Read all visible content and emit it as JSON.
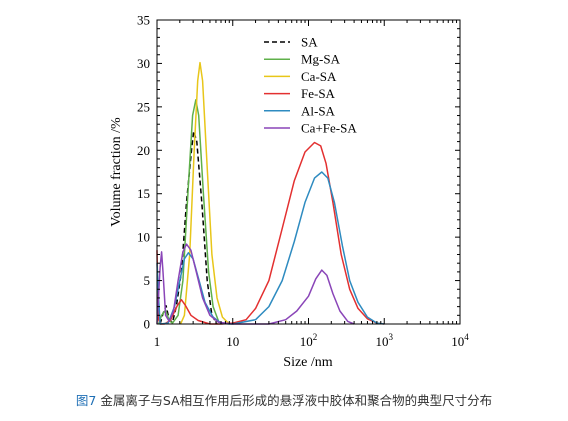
{
  "caption": {
    "figure_label": "图7",
    "text": "金属离子与SA相互作用后形成的悬浮液中胶体和聚合物的典型尺寸分布"
  },
  "chart_data": {
    "type": "line",
    "xlabel": "Size /nm",
    "ylabel": "Volume fraction /%",
    "xscale": "log",
    "xlim": [
      1,
      10000
    ],
    "ylim": [
      0,
      35
    ],
    "x_ticks": [
      {
        "value": 1,
        "label": "1"
      },
      {
        "value": 10,
        "label": "10"
      },
      {
        "value": 100,
        "label": "10",
        "sup": "2"
      },
      {
        "value": 1000,
        "label": "10",
        "sup": "3"
      },
      {
        "value": 10000,
        "label": "10",
        "sup": "4"
      }
    ],
    "y_ticks": [
      0,
      5,
      10,
      15,
      20,
      25,
      30,
      35
    ],
    "legend_position": "top-right inside",
    "series": [
      {
        "name": "SA",
        "color": "#000000",
        "dash": "dashed",
        "points": [
          [
            1.1,
            0
          ],
          [
            1.2,
            1.2
          ],
          [
            1.32,
            2.1
          ],
          [
            1.45,
            0.5
          ],
          [
            1.6,
            0.2
          ],
          [
            1.8,
            2
          ],
          [
            2.1,
            6
          ],
          [
            2.45,
            14
          ],
          [
            2.85,
            20
          ],
          [
            3.05,
            22.2
          ],
          [
            3.35,
            21
          ],
          [
            3.9,
            14
          ],
          [
            4.6,
            5
          ],
          [
            5.3,
            1
          ],
          [
            6.2,
            0
          ]
        ]
      },
      {
        "name": "Mg-SA",
        "color": "#5fb04a",
        "dash": "solid",
        "points": [
          [
            1.05,
            0
          ],
          [
            1.15,
            1
          ],
          [
            1.3,
            1.6
          ],
          [
            1.45,
            0.4
          ],
          [
            1.6,
            0.1
          ],
          [
            1.9,
            1
          ],
          [
            2.2,
            5
          ],
          [
            2.6,
            16
          ],
          [
            2.95,
            24
          ],
          [
            3.25,
            25.8
          ],
          [
            3.55,
            24
          ],
          [
            4.1,
            15
          ],
          [
            4.8,
            6
          ],
          [
            5.5,
            2
          ],
          [
            6.5,
            0.3
          ],
          [
            7.5,
            0
          ]
        ]
      },
      {
        "name": "Ca-SA",
        "color": "#e8c619",
        "dash": "solid",
        "points": [
          [
            2.05,
            0
          ],
          [
            2.3,
            1
          ],
          [
            2.7,
            8
          ],
          [
            3.1,
            20
          ],
          [
            3.45,
            28
          ],
          [
            3.7,
            30.1
          ],
          [
            4.0,
            28
          ],
          [
            4.6,
            18
          ],
          [
            5.3,
            8
          ],
          [
            6.2,
            3
          ],
          [
            7.3,
            0.8
          ],
          [
            9,
            0
          ]
        ]
      },
      {
        "name": "Fe-SA",
        "color": "#e33030",
        "dash": "solid",
        "points": [
          [
            1.0,
            8.5
          ],
          [
            1.02,
            4
          ],
          [
            1.05,
            0.5
          ],
          [
            1.12,
            0
          ],
          [
            1.25,
            0
          ],
          [
            1.5,
            0.4
          ],
          [
            1.85,
            2.1
          ],
          [
            2.1,
            2.8
          ],
          [
            2.35,
            2.2
          ],
          [
            2.8,
            1
          ],
          [
            3.5,
            0.4
          ],
          [
            5,
            0
          ],
          [
            7,
            0
          ],
          [
            10,
            0.1
          ],
          [
            15,
            0.5
          ],
          [
            20,
            1.8
          ],
          [
            30,
            5
          ],
          [
            45,
            11
          ],
          [
            65,
            16.5
          ],
          [
            90,
            19.8
          ],
          [
            120,
            20.9
          ],
          [
            145,
            20.5
          ],
          [
            170,
            18.5
          ],
          [
            210,
            14
          ],
          [
            270,
            8
          ],
          [
            350,
            4
          ],
          [
            450,
            1.8
          ],
          [
            600,
            0.6
          ],
          [
            800,
            0.1
          ],
          [
            1000,
            0
          ]
        ]
      },
      {
        "name": "Al-SA",
        "color": "#2e8bc0",
        "dash": "solid",
        "points": [
          [
            1.0,
            7
          ],
          [
            1.05,
            3
          ],
          [
            1.1,
            0
          ],
          [
            1.4,
            0.1
          ],
          [
            1.7,
            2
          ],
          [
            2.0,
            5
          ],
          [
            2.3,
            7.5
          ],
          [
            2.6,
            8.2
          ],
          [
            3.0,
            7.5
          ],
          [
            3.6,
            5
          ],
          [
            4.3,
            2.5
          ],
          [
            5.5,
            0.8
          ],
          [
            7,
            0.1
          ],
          [
            9,
            0
          ],
          [
            10,
            0
          ],
          [
            20,
            0.5
          ],
          [
            30,
            2
          ],
          [
            45,
            5
          ],
          [
            65,
            9.5
          ],
          [
            90,
            14
          ],
          [
            120,
            16.8
          ],
          [
            150,
            17.5
          ],
          [
            180,
            16.8
          ],
          [
            220,
            14
          ],
          [
            280,
            9
          ],
          [
            350,
            5
          ],
          [
            450,
            2.5
          ],
          [
            600,
            0.8
          ],
          [
            800,
            0.1
          ],
          [
            1000,
            0
          ]
        ]
      },
      {
        "name": "Ca+Fe-SA",
        "color": "#8a45b8",
        "dash": "solid",
        "points": [
          [
            1.0,
            0
          ],
          [
            1.1,
            6.5
          ],
          [
            1.15,
            8.3
          ],
          [
            1.2,
            6
          ],
          [
            1.3,
            1
          ],
          [
            1.45,
            0.3
          ],
          [
            1.65,
            1.5
          ],
          [
            1.9,
            5
          ],
          [
            2.2,
            8.3
          ],
          [
            2.45,
            9.2
          ],
          [
            2.8,
            8.5
          ],
          [
            3.3,
            6
          ],
          [
            4.0,
            3
          ],
          [
            5,
            1
          ],
          [
            6.5,
            0.2
          ],
          [
            10,
            0
          ],
          [
            30,
            0
          ],
          [
            50,
            0.5
          ],
          [
            70,
            1.5
          ],
          [
            100,
            3.2
          ],
          [
            125,
            5.2
          ],
          [
            150,
            6.2
          ],
          [
            175,
            5.6
          ],
          [
            210,
            3.5
          ],
          [
            260,
            1.5
          ],
          [
            330,
            0.3
          ],
          [
            400,
            0
          ]
        ]
      }
    ]
  }
}
